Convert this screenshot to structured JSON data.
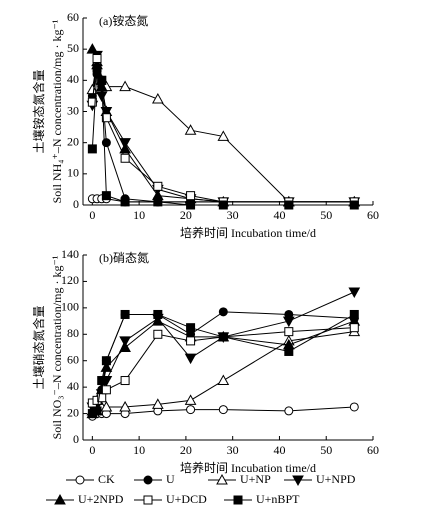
{
  "chart_data": [
    {
      "type": "line",
      "title": "(a)铵态氮",
      "x_label": "培养时间 Incubation time/d",
      "y_label": "土壤铵态氮含量",
      "y_label_en": "Soil NH₄⁺–N concentration/mg · kg⁻¹",
      "xlim": [
        -2,
        60
      ],
      "xticks": [
        0,
        10,
        20,
        30,
        40,
        50,
        60
      ],
      "ylim": [
        0,
        60
      ],
      "yticks": [
        0,
        10,
        20,
        30,
        40,
        50,
        60
      ],
      "x": [
        0,
        1,
        2,
        3,
        7,
        14,
        21,
        28,
        42,
        56
      ],
      "series": [
        {
          "name": "CK",
          "color": "#000000",
          "marker": "circle",
          "filled": false,
          "values": [
            2,
            2,
            2,
            2,
            1,
            1,
            1,
            1,
            1,
            1
          ]
        },
        {
          "name": "U",
          "color": "#000000",
          "marker": "circle",
          "filled": true,
          "values": [
            35,
            42,
            38,
            20,
            2,
            1,
            1,
            1,
            1,
            1
          ]
        },
        {
          "name": "U+NP",
          "color": "#000000",
          "marker": "triangle-up",
          "filled": false,
          "values": [
            37,
            46,
            40,
            38,
            38,
            34,
            24,
            22,
            1,
            1
          ]
        },
        {
          "name": "U+NPD",
          "color": "#000000",
          "marker": "triangle-down",
          "filled": true,
          "values": [
            32,
            48,
            35,
            30,
            20,
            5,
            2,
            1,
            1,
            1
          ]
        },
        {
          "name": "U+2NPD",
          "color": "#000000",
          "marker": "triangle-up",
          "filled": true,
          "values": [
            50,
            45,
            38,
            30,
            18,
            3,
            2,
            1,
            1,
            1
          ]
        },
        {
          "name": "U+DCD",
          "color": "#000000",
          "marker": "square",
          "filled": false,
          "values": [
            33,
            47,
            40,
            28,
            15,
            6,
            3,
            1,
            1,
            1
          ]
        },
        {
          "name": "U+nBPT",
          "color": "#000000",
          "marker": "square",
          "filled": true,
          "values": [
            18,
            44,
            40,
            3,
            1,
            1,
            0,
            0,
            0,
            0
          ]
        }
      ]
    },
    {
      "type": "line",
      "title": "(b)硝态氮",
      "x_label": "培养时间 Incubation time/d",
      "y_label": "土壤硝态氮含量",
      "y_label_en": "Soil NO₃⁻–N concentration/mg · kg⁻¹",
      "xlim": [
        -2,
        60
      ],
      "xticks": [
        0,
        10,
        20,
        30,
        40,
        50,
        60
      ],
      "ylim": [
        0,
        140
      ],
      "yticks": [
        0,
        20,
        40,
        60,
        80,
        100,
        120,
        140
      ],
      "x": [
        0,
        1,
        2,
        3,
        7,
        14,
        21,
        28,
        42,
        56
      ],
      "series": [
        {
          "color": "#000000",
          "marker": "circle",
          "filled": false,
          "values": [
            18,
            20,
            20,
            20,
            20,
            22,
            23,
            23,
            22,
            25
          ]
        },
        {
          "color": "#000000",
          "marker": "circle",
          "filled": true,
          "values": [
            20,
            25,
            38,
            60,
            95,
            95,
            80,
            97,
            95,
            92
          ]
        },
        {
          "color": "#000000",
          "marker": "triangle-up",
          "filled": false,
          "values": [
            22,
            22,
            25,
            25,
            25,
            27,
            30,
            45,
            75,
            82
          ]
        },
        {
          "color": "#000000",
          "marker": "triangle-down",
          "filled": true,
          "values": [
            25,
            27,
            35,
            45,
            75,
            92,
            62,
            78,
            90,
            112
          ]
        },
        {
          "color": "#000000",
          "marker": "triangle-up",
          "filled": true,
          "values": [
            20,
            30,
            38,
            55,
            70,
            90,
            78,
            78,
            72,
            90
          ]
        },
        {
          "color": "#000000",
          "marker": "square",
          "filled": false,
          "values": [
            28,
            30,
            32,
            38,
            45,
            80,
            75,
            78,
            82,
            85
          ]
        },
        {
          "color": "#000000",
          "marker": "square",
          "filled": true,
          "values": [
            20,
            22,
            45,
            60,
            95,
            95,
            85,
            78,
            67,
            95
          ]
        }
      ]
    }
  ]
}
